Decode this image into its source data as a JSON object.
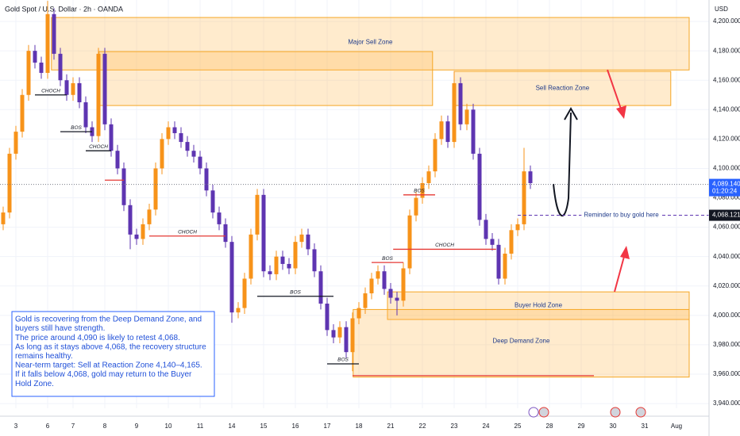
{
  "chart_data": {
    "type": "candlestick",
    "title": "Gold Spot / U.S. Dollar · 2h · OANDA",
    "currency": "USD",
    "up_color": "#f7931a",
    "down_color": "#5e35b1",
    "grid": true,
    "xlim": [
      -0.5,
      111.125
    ],
    "ylim": [
      3936.8,
      4214.6
    ],
    "xticks": [
      {
        "value": 2,
        "label": "3"
      },
      {
        "value": 7,
        "label": "6"
      },
      {
        "value": 11,
        "label": "7"
      },
      {
        "value": 16,
        "label": "8"
      },
      {
        "value": 21,
        "label": "9"
      },
      {
        "value": 26,
        "label": "10"
      },
      {
        "value": 31,
        "label": "11"
      },
      {
        "value": 36,
        "label": "14"
      },
      {
        "value": 41,
        "label": "15"
      },
      {
        "value": 46,
        "label": "16"
      },
      {
        "value": 51,
        "label": "17"
      },
      {
        "value": 56,
        "label": "18"
      },
      {
        "value": 61,
        "label": "21"
      },
      {
        "value": 66,
        "label": "22"
      },
      {
        "value": 71,
        "label": "23"
      },
      {
        "value": 76,
        "label": "24"
      },
      {
        "value": 81,
        "label": "25"
      },
      {
        "value": 86,
        "label": "28"
      },
      {
        "value": 91,
        "label": "29"
      },
      {
        "value": 96,
        "label": "30"
      },
      {
        "value": 101,
        "label": "31"
      },
      {
        "value": 106,
        "label": "Aug"
      }
    ],
    "yticks": [
      {
        "value": 3940,
        "label": "3,940.000"
      },
      {
        "value": 3960,
        "label": "3,960.000"
      },
      {
        "value": 3980,
        "label": "3,980.000"
      },
      {
        "value": 4000,
        "label": "4,000.000"
      },
      {
        "value": 4020,
        "label": "4,020.000"
      },
      {
        "value": 4040,
        "label": "4,040.000"
      },
      {
        "value": 4060,
        "label": "4,060.000"
      },
      {
        "value": 4080,
        "label": "4,080.000"
      },
      {
        "value": 4100,
        "label": "4,100.000"
      },
      {
        "value": 4120,
        "label": "4,120.000"
      },
      {
        "value": 4140,
        "label": "4,140.000"
      },
      {
        "value": 4160,
        "label": "4,160.000"
      },
      {
        "value": 4180,
        "label": "4,180.000"
      },
      {
        "value": 4200,
        "label": "4,200.000"
      }
    ],
    "x": [
      0,
      1,
      2,
      3,
      4,
      5,
      6,
      7,
      8,
      9,
      10,
      11,
      12,
      13,
      14,
      15,
      16,
      17,
      18,
      19,
      20,
      21,
      22,
      23,
      24,
      25,
      26,
      27,
      28,
      29,
      30,
      31,
      32,
      33,
      34,
      35,
      36,
      37,
      38,
      39,
      40,
      41,
      42,
      43,
      44,
      45,
      46,
      47,
      48,
      49,
      50,
      51,
      52,
      53,
      54,
      55,
      56,
      57,
      58,
      59,
      60,
      61,
      62,
      63,
      64,
      65,
      66,
      67,
      68,
      69,
      70,
      71,
      72,
      73,
      74,
      75,
      76,
      77,
      78,
      79,
      80,
      81,
      82,
      83
    ],
    "open": [
      4062,
      4070,
      4110,
      4125,
      4150,
      4180,
      4172,
      4165,
      4205,
      4178,
      4160,
      4150,
      4158,
      4145,
      4128,
      4122,
      4178,
      4130,
      4112,
      4100,
      4075,
      4055,
      4052,
      4062,
      4072,
      4100,
      4120,
      4128,
      4124,
      4118,
      4112,
      4108,
      4100,
      4085,
      4070,
      4062,
      4050,
      4002,
      4005,
      4025,
      4055,
      4082,
      4030,
      4028,
      4040,
      4035,
      4032,
      4050,
      4055,
      4045,
      4030,
      4008,
      3990,
      3985,
      3992,
      3975,
      3998,
      4005,
      4015,
      4025,
      4030,
      4018,
      4012,
      4010,
      4032,
      4068,
      4080,
      4090,
      4098,
      4120,
      4132,
      4118,
      4158,
      4130,
      4140,
      4110,
      4065,
      4052,
      4048,
      4025,
      4042,
      4058,
      4062,
      4098
    ],
    "high": [
      4074,
      4114,
      4129,
      4154,
      4184,
      4184,
      4176,
      4214,
      4209,
      4182,
      4164,
      4162,
      4162,
      4149,
      4132,
      4182,
      4182,
      4134,
      4116,
      4104,
      4079,
      4059,
      4066,
      4076,
      4104,
      4124,
      4132,
      4132,
      4128,
      4122,
      4116,
      4112,
      4104,
      4089,
      4074,
      4066,
      4054,
      4009,
      4029,
      4059,
      4086,
      4086,
      4034,
      4044,
      4044,
      4039,
      4054,
      4059,
      4059,
      4049,
      4034,
      4012,
      3994,
      3996,
      3996,
      4002,
      4009,
      4019,
      4029,
      4034,
      4034,
      4022,
      4016,
      4036,
      4072,
      4084,
      4094,
      4102,
      4124,
      4136,
      4136,
      4166,
      4162,
      4144,
      4144,
      4114,
      4069,
      4056,
      4052,
      4046,
      4062,
      4066,
      4114,
      4102
    ],
    "low": [
      4058,
      4066,
      4106,
      4121,
      4146,
      4168,
      4161,
      4161,
      4174,
      4156,
      4146,
      4146,
      4141,
      4124,
      4118,
      4118,
      4126,
      4108,
      4096,
      4071,
      4045,
      4048,
      4048,
      4058,
      4068,
      4096,
      4116,
      4120,
      4114,
      4108,
      4104,
      4096,
      4081,
      4066,
      4058,
      4046,
      3995,
      3998,
      4001,
      4021,
      4051,
      4026,
      4024,
      4024,
      4031,
      4028,
      4028,
      4046,
      4041,
      4026,
      4004,
      3986,
      3981,
      3981,
      3971,
      3962,
      3994,
      4001,
      4011,
      4021,
      4014,
      4008,
      4000,
      4006,
      4028,
      4064,
      4076,
      4086,
      4094,
      4116,
      4114,
      4114,
      4126,
      4126,
      4106,
      4061,
      4048,
      4044,
      4021,
      4021,
      4038,
      4054,
      4058,
      4086
    ],
    "close": [
      4070,
      4110,
      4125,
      4150,
      4180,
      4172,
      4165,
      4205,
      4178,
      4160,
      4150,
      4158,
      4145,
      4128,
      4122,
      4178,
      4130,
      4112,
      4100,
      4075,
      4055,
      4052,
      4062,
      4072,
      4100,
      4120,
      4128,
      4124,
      4118,
      4112,
      4108,
      4100,
      4085,
      4070,
      4062,
      4050,
      4002,
      4005,
      4025,
      4055,
      4082,
      4030,
      4028,
      4040,
      4035,
      4032,
      4050,
      4055,
      4045,
      4030,
      4008,
      3990,
      3985,
      3992,
      3975,
      3998,
      4005,
      4015,
      4025,
      4030,
      4018,
      4012,
      4010,
      4032,
      4068,
      4080,
      4090,
      4098,
      4120,
      4132,
      4118,
      4158,
      4130,
      4140,
      4110,
      4065,
      4052,
      4048,
      4025,
      4042,
      4058,
      4062,
      4098,
      4090
    ],
    "zones": [
      {
        "label": "Major Sell Zone",
        "x": [
          7.6,
          108
        ],
        "y": [
          4167,
          4202.7
        ]
      },
      {
        "x": [
          15.1,
          67.6
        ],
        "y": [
          4142.8,
          4179.5
        ]
      },
      {
        "label": "Sell Reaction Zone",
        "x": [
          71,
          105.1
        ],
        "y": [
          4142.8,
          4166
        ]
      },
      {
        "label": "Buyer Hold Zone",
        "x": [
          60.5,
          108
        ],
        "y": [
          3997.2,
          4016
        ]
      },
      {
        "label": "Deep Demand Zone",
        "x": [
          55.1,
          108
        ],
        "y": [
          3958,
          4004
        ]
      }
    ],
    "annotations": [
      {
        "text": "CHOCH",
        "x": [
          5,
          10
        ],
        "y": 4150,
        "color": "#131722"
      },
      {
        "text": "BOS",
        "x": [
          9,
          14
        ],
        "y": 4125,
        "color": "#131722"
      },
      {
        "text": "CHOCH",
        "x": [
          13,
          17
        ],
        "y": 4112,
        "color": "#131722"
      },
      {
        "x": [
          16,
          19
        ],
        "y": 4092,
        "color": "#e53935"
      },
      {
        "text": "CHOCH",
        "x": [
          23,
          35
        ],
        "y": 4054,
        "color": "#e53935"
      },
      {
        "text": "BOS",
        "x": [
          40,
          52
        ],
        "y": 4013,
        "color": "#131722"
      },
      {
        "text": "BOS",
        "x": [
          51,
          56
        ],
        "y": 3967,
        "color": "#131722"
      },
      {
        "text": "BOS",
        "x": [
          58,
          63
        ],
        "y": 4036,
        "color": "#e53935"
      },
      {
        "text": "BOS",
        "x": [
          63,
          68
        ],
        "y": 4082,
        "color": "#e53935"
      },
      {
        "text": "CHOCH",
        "x": [
          61.4,
          77.6
        ],
        "y": 4045,
        "color": "#e53935"
      },
      {
        "x": [
          55,
          93
        ],
        "y": 3959,
        "color": "#e53935"
      }
    ],
    "last": {
      "value": 4089.14,
      "label": "4,089.140",
      "time": "01:20:24"
    },
    "reminder": {
      "value": 4068.121,
      "label": "4,068.121",
      "text": "Reminder to buy gold here",
      "x": 81
    },
    "note": [
      "Gold is recovering from the Deep Demand Zone, and",
      "buyers still have strength.",
      "The price around 4,090 is likely to retest 4,068.",
      "As long as it stays above 4,068, the recovery structure",
      "remains healthy.",
      "Near-term target: Sell at Reaction Zone 4,140–4,165.",
      "If it falls below 4,068, gold may return to the Buyer",
      "Hold Zone."
    ]
  }
}
